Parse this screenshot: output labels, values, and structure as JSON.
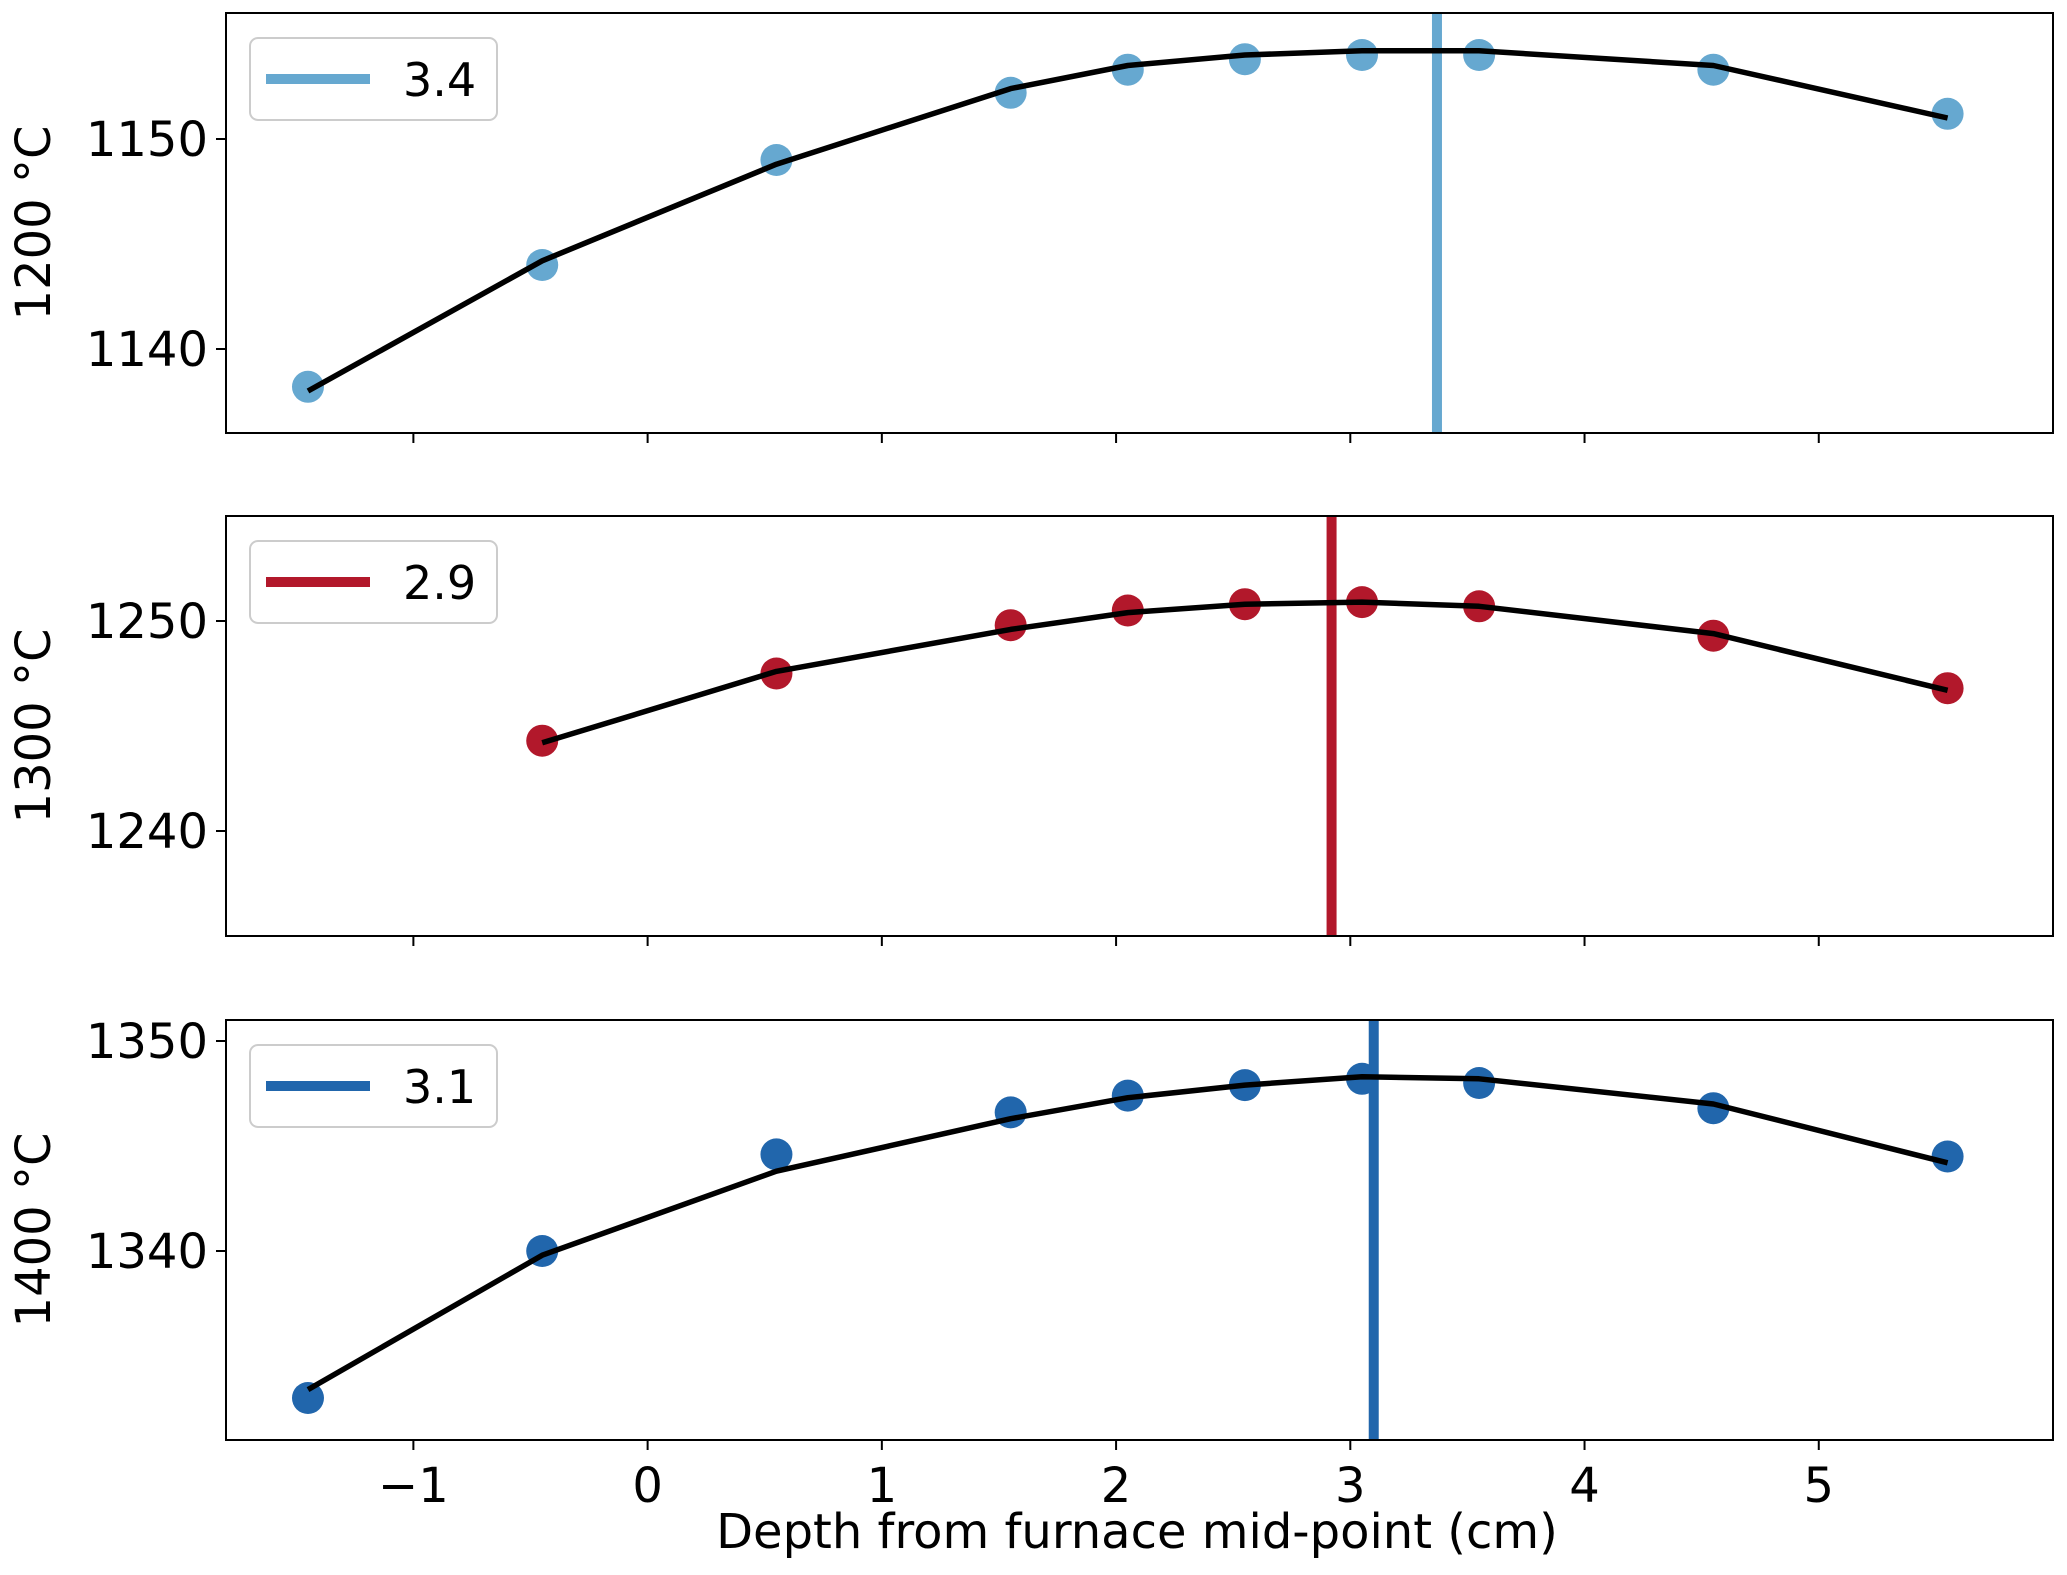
{
  "figure": {
    "xlabel": "Depth from furnace mid-point (cm)",
    "x_ticks": [
      -1,
      0,
      1,
      2,
      3,
      4,
      5
    ],
    "x_tick_labels": [
      "−1",
      "0",
      "1",
      "2",
      "3",
      "4",
      "5"
    ],
    "xlim": [
      -1.8,
      6.0
    ],
    "shared_x": true
  },
  "chart_data": [
    {
      "type": "scatter",
      "ylabel": "1200 °C",
      "ylim": [
        1136,
        1156
      ],
      "y_ticks": [
        1140,
        1150
      ],
      "y_tick_labels": [
        "1140",
        "1150"
      ],
      "point_color": "#66a8d0",
      "vline": {
        "x": 3.37,
        "color": "#66a8d0",
        "legend": "3.4"
      },
      "legend_position": "upper left",
      "series": [
        {
          "kind": "points",
          "x": [
            -1.45,
            -0.45,
            0.55,
            1.55,
            2.05,
            2.55,
            3.05,
            3.55,
            4.55,
            5.55
          ],
          "y": [
            1138.2,
            1144.0,
            1149.0,
            1152.2,
            1153.3,
            1153.8,
            1154.0,
            1154.0,
            1153.3,
            1151.2
          ]
        },
        {
          "kind": "line",
          "color": "#000000",
          "x": [
            -1.45,
            -0.45,
            0.55,
            1.55,
            2.05,
            2.55,
            3.05,
            3.55,
            4.55,
            5.55
          ],
          "y": [
            1138.0,
            1144.2,
            1148.8,
            1152.4,
            1153.5,
            1154.0,
            1154.2,
            1154.2,
            1153.5,
            1151.0
          ]
        }
      ]
    },
    {
      "type": "scatter",
      "ylabel": "1300 °C",
      "ylim": [
        1235,
        1255
      ],
      "y_ticks": [
        1240,
        1250
      ],
      "y_tick_labels": [
        "1240",
        "1250"
      ],
      "point_color": "#b2182b",
      "vline": {
        "x": 2.92,
        "color": "#b2182b",
        "legend": "2.9"
      },
      "legend_position": "upper left",
      "series": [
        {
          "kind": "points",
          "x": [
            -0.45,
            0.55,
            1.55,
            2.05,
            2.55,
            3.05,
            3.55,
            4.55,
            5.55
          ],
          "y": [
            1244.3,
            1247.5,
            1249.8,
            1250.5,
            1250.8,
            1250.9,
            1250.7,
            1249.3,
            1246.8
          ]
        },
        {
          "kind": "line",
          "color": "#000000",
          "x": [
            -0.45,
            0.55,
            1.55,
            2.05,
            2.55,
            3.05,
            3.55,
            4.55,
            5.55
          ],
          "y": [
            1244.2,
            1247.6,
            1249.6,
            1250.4,
            1250.8,
            1250.9,
            1250.7,
            1249.4,
            1246.7
          ]
        }
      ]
    },
    {
      "type": "scatter",
      "ylabel": "1400 °C",
      "ylim": [
        1331,
        1351
      ],
      "y_ticks": [
        1340,
        1350
      ],
      "y_tick_labels": [
        "1340",
        "1350"
      ],
      "point_color": "#2166ac",
      "vline": {
        "x": 3.1,
        "color": "#2166ac",
        "legend": "3.1"
      },
      "legend_position": "upper left",
      "series": [
        {
          "kind": "points",
          "x": [
            -1.45,
            -0.45,
            0.55,
            1.55,
            2.05,
            2.55,
            3.05,
            3.55,
            4.55,
            5.55
          ],
          "y": [
            1333.0,
            1340.0,
            1344.6,
            1346.6,
            1347.4,
            1347.9,
            1348.2,
            1348.0,
            1346.8,
            1344.5
          ]
        },
        {
          "kind": "line",
          "color": "#000000",
          "x": [
            -1.45,
            -0.45,
            0.55,
            1.55,
            2.05,
            2.55,
            3.05,
            3.55,
            4.55,
            5.55
          ],
          "y": [
            1333.4,
            1339.8,
            1343.8,
            1346.3,
            1347.3,
            1347.9,
            1348.3,
            1348.2,
            1347.0,
            1344.2
          ]
        }
      ]
    }
  ]
}
